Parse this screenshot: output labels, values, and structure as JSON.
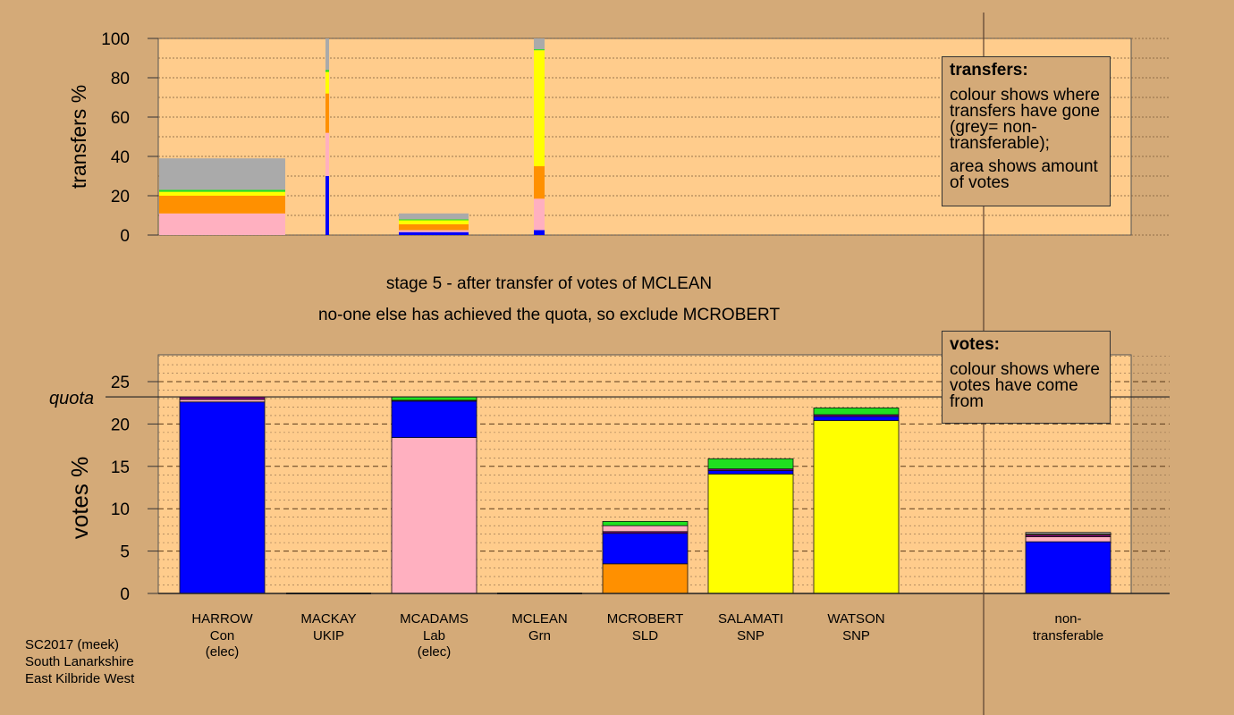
{
  "stage_title": "stage 5 - after transfer of votes of MCLEAN",
  "stage_note": "no-one else has achieved the quota, so exclude MCROBERT",
  "footer": {
    "line1": "SC2017 (meek)",
    "line2": "South Lanarkshire",
    "line3": "East Kilbride West"
  },
  "transfers_legend": {
    "title": "transfers:",
    "line1": "colour shows where transfers have gone (grey= non-transferable);",
    "line2": "area shows amount of votes"
  },
  "votes_legend": {
    "title": "votes:",
    "line1": "colour shows where votes have come from"
  },
  "colors": {
    "Con": "#0000ff",
    "Lab": "#ffb0c0",
    "SLD": "#ff9000",
    "SNP": "#ffff00",
    "Grn": "#20e020",
    "UKIP": "#800080",
    "nontransferable": "#aaaaaa",
    "background": "#d4aa78",
    "plot": "#ffcc8c"
  },
  "chart_data": [
    {
      "type": "bar",
      "ylabel": "transfers %",
      "ylim": [
        0,
        100
      ],
      "yticks": [
        0,
        20,
        40,
        60,
        80,
        100
      ],
      "bars": [
        {
          "name": "HARROW",
          "segments": [
            {
              "party": "Lab",
              "value": 11
            },
            {
              "party": "SLD",
              "value": 9
            },
            {
              "party": "SNP",
              "value": 2
            },
            {
              "party": "Grn",
              "value": 1
            },
            {
              "party": "nontransferable",
              "value": 16
            }
          ]
        },
        {
          "name": "MACKAY",
          "segments": [
            {
              "party": "Con",
              "value": 30
            },
            {
              "party": "Lab",
              "value": 22
            },
            {
              "party": "SLD",
              "value": 20
            },
            {
              "party": "SNP",
              "value": 11
            },
            {
              "party": "Grn",
              "value": 1
            },
            {
              "party": "nontransferable",
              "value": 16
            }
          ]
        },
        {
          "name": "MCADAMS",
          "segments": [
            {
              "party": "Con",
              "value": 1.5
            },
            {
              "party": "Lab",
              "value": 1
            },
            {
              "party": "SLD",
              "value": 3
            },
            {
              "party": "SNP",
              "value": 2
            },
            {
              "party": "Grn",
              "value": 0.5
            },
            {
              "party": "nontransferable",
              "value": 3
            }
          ]
        },
        {
          "name": "MCLEAN",
          "segments": [
            {
              "party": "Con",
              "value": 2.5
            },
            {
              "party": "Lab",
              "value": 16
            },
            {
              "party": "SLD",
              "value": 16.5
            },
            {
              "party": "SNP",
              "value": 59
            },
            {
              "party": "Grn",
              "value": 0.5
            },
            {
              "party": "nontransferable",
              "value": 5.5
            }
          ]
        }
      ]
    },
    {
      "type": "bar",
      "ylabel": "votes %",
      "ylim": [
        0,
        28
      ],
      "yticks": [
        0,
        5,
        10,
        15,
        20,
        25
      ],
      "quota": 23.2,
      "quota_label": "quota",
      "candidates": [
        {
          "name": "HARROW",
          "party": "Con",
          "note": "(elec)",
          "segments": [
            {
              "party": "Con",
              "value": 22.6
            },
            {
              "party": "Lab",
              "value": 0.3
            },
            {
              "party": "UKIP",
              "value": 0.3
            }
          ]
        },
        {
          "name": "MACKAY",
          "party": "UKIP",
          "note": "",
          "segments": []
        },
        {
          "name": "MCADAMS",
          "party": "Lab",
          "note": "(elec)",
          "segments": [
            {
              "party": "Lab",
              "value": 18.4
            },
            {
              "party": "Con",
              "value": 4.3
            },
            {
              "party": "UKIP",
              "value": 0.1
            },
            {
              "party": "Grn",
              "value": 0.4
            }
          ]
        },
        {
          "name": "MCLEAN",
          "party": "Grn",
          "note": "",
          "segments": []
        },
        {
          "name": "MCROBERT",
          "party": "SLD",
          "note": "",
          "segments": [
            {
              "party": "SLD",
              "value": 3.5
            },
            {
              "party": "Con",
              "value": 3.6
            },
            {
              "party": "UKIP",
              "value": 0.2
            },
            {
              "party": "Lab",
              "value": 0.7
            },
            {
              "party": "Grn",
              "value": 0.5
            }
          ]
        },
        {
          "name": "SALAMATI",
          "party": "SNP",
          "note": "",
          "segments": [
            {
              "party": "SNP",
              "value": 14.1
            },
            {
              "party": "Con",
              "value": 0.4
            },
            {
              "party": "UKIP",
              "value": 0.2
            },
            {
              "party": "Grn",
              "value": 1.2
            }
          ]
        },
        {
          "name": "WATSON",
          "party": "SNP",
          "note": "",
          "segments": [
            {
              "party": "SNP",
              "value": 20.4
            },
            {
              "party": "Con",
              "value": 0.5
            },
            {
              "party": "UKIP",
              "value": 0.2
            },
            {
              "party": "Grn",
              "value": 0.8
            }
          ]
        },
        {
          "name": "non-",
          "party": "transferable",
          "note": "",
          "segments": [
            {
              "party": "Con",
              "value": 6.1
            },
            {
              "party": "Lab",
              "value": 0.6
            },
            {
              "party": "UKIP",
              "value": 0.2
            },
            {
              "party": "SLD",
              "value": 0.1
            },
            {
              "party": "nontransferable",
              "value": 0.2
            }
          ]
        }
      ]
    }
  ]
}
